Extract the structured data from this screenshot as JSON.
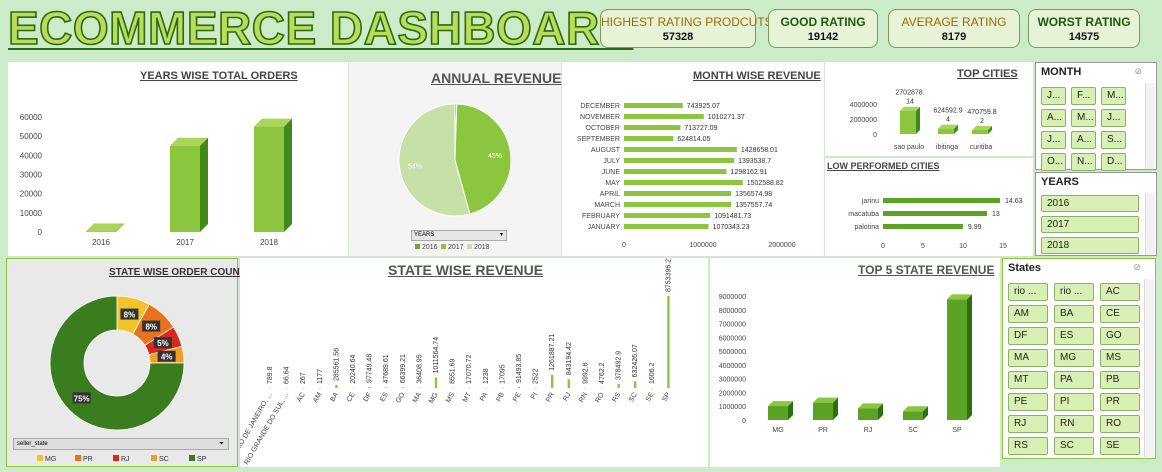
{
  "header": {
    "title": "ECOMMERCE DASHBOARD",
    "kpis": [
      {
        "label": "HIGHEST RATING PRODCUTS",
        "value": "57328"
      },
      {
        "label": "GOOD RATING",
        "value": "19142"
      },
      {
        "label": "AVERAGE RATING",
        "value": "8179"
      },
      {
        "label": "WORST RATING",
        "value": "14575"
      }
    ]
  },
  "colors": {
    "accent": "#8cc63f",
    "dark_green": "#3a7d1e",
    "light_green": "#b9dd5b",
    "pie_light": "#c6e0a8",
    "gold": "#f2c42a",
    "orange": "#e8731c",
    "red": "#d9281e"
  },
  "chart_data": [
    {
      "id": "years_wise_total_orders",
      "type": "bar",
      "title": "YEARS WISE TOTAL ORDERS",
      "categories": [
        "2016",
        "2017",
        "2018"
      ],
      "values": [
        300,
        45000,
        55000
      ],
      "ylim": [
        0,
        60000
      ],
      "yticks": [
        "0",
        "10000",
        "20000",
        "30000",
        "40000",
        "50000",
        "60000"
      ]
    },
    {
      "id": "annual_revenue",
      "type": "pie",
      "title": "ANNUAL REVENUE",
      "labels": [
        "2016",
        "2017",
        "2018"
      ],
      "values": [
        0.5,
        45,
        54
      ],
      "data_labels": [
        "0%",
        "45%",
        "54%"
      ],
      "filter_label": "YEARS",
      "legend_position": "bottom"
    },
    {
      "id": "month_wise_revenue",
      "type": "bar",
      "orientation": "horizontal",
      "title": "MONTH WISE REVENUE",
      "categories": [
        "DECEMBER",
        "NOVEMBER",
        "OCTOBER",
        "SEPTEMBER",
        "AUGUST",
        "JULY",
        "JUNE",
        "MAY",
        "APRIL",
        "MARCH",
        "FEBRUARY",
        "JANUARY"
      ],
      "values": [
        743925.07,
        1010271.37,
        713727.09,
        624814.05,
        1428658.01,
        1393538.7,
        1298162.91,
        1502588.82,
        1356574.98,
        1357557.74,
        1091481.73,
        1070343.23
      ],
      "data_labels": [
        "743925.07",
        "1010271.37",
        "713727.09",
        "624814.05",
        "1428658.01",
        "1393538.7",
        "1298162.91",
        "1502588.82",
        "1356574.98",
        "1357557.74",
        "1091481.73",
        "1070343.23"
      ],
      "xlim": [
        0,
        2000000
      ],
      "xticks": [
        "0",
        "1000000",
        "2000000"
      ]
    },
    {
      "id": "top_cities",
      "type": "bar",
      "title": "TOP CITIES",
      "categories": [
        "sao paulo",
        "ibitinga",
        "curitiba"
      ],
      "values": [
        2702878.14,
        624592.94,
        470759.82
      ],
      "data_labels": [
        "2702878.\n14",
        "624592.9\n4",
        "470759.8\n2"
      ],
      "ylim": [
        0,
        4000000
      ],
      "yticks": [
        "0",
        "2000000",
        "4000000"
      ]
    },
    {
      "id": "low_performed_cities",
      "type": "bar",
      "orientation": "horizontal",
      "title": "LOW PERFORMED  CITIES",
      "categories": [
        "jarinu",
        "macatuba",
        "palotina"
      ],
      "values": [
        14.63,
        13,
        9.99
      ],
      "data_labels": [
        "14.63",
        "13",
        "9.99"
      ],
      "xlim": [
        0,
        15
      ],
      "xticks": [
        "0",
        "5",
        "10",
        "15"
      ]
    },
    {
      "id": "state_wise_order_count",
      "type": "pie",
      "donut": true,
      "title": "STATE WISE ORDER COUNT",
      "labels": [
        "MG",
        "PR",
        "RJ",
        "SC",
        "SP"
      ],
      "values": [
        8,
        8,
        5,
        4,
        75
      ],
      "data_labels": [
        "8%",
        "8%",
        "5%",
        "4%",
        "75%"
      ],
      "filter_label": "seller_state",
      "legend_position": "bottom"
    },
    {
      "id": "state_wise_revenue",
      "type": "bar",
      "title": "STATE WISE REVENUE",
      "categories": [
        "RIO DE JANEIRO, ...",
        "RIO GRANDE DO SUL, ...",
        "AC",
        "AM",
        "BA",
        "CE",
        "DF",
        "ES",
        "GO",
        "MA",
        "MG",
        "MS",
        "MT",
        "PA",
        "PB",
        "PE",
        "PI",
        "PR",
        "RJ",
        "RN",
        "RO",
        "RS",
        "SC",
        "SE",
        "SP"
      ],
      "values": [
        789.8,
        66.64,
        267,
        1177,
        285561.56,
        20240.64,
        97749.48,
        47689.61,
        66399.21,
        36408.95,
        1011564.74,
        8551.69,
        17070.72,
        1238,
        17095,
        91493.85,
        2522,
        1261887.21,
        843194.42,
        9992.6,
        4762.2,
        378492.9,
        632426.07,
        1606.2,
        8753396.21
      ],
      "data_labels": [
        "789.8",
        "66.64",
        "267",
        "1177",
        "285561.56",
        "20240.64",
        "97749.48",
        "47689.61",
        "66399.21",
        "36408.95",
        "1011564.74",
        "8551.69",
        "17070.72",
        "1238",
        "17095",
        "91493.85",
        "2522",
        "1261887.21",
        "843194.42",
        "9992.6",
        "4762.2",
        "378492.9",
        "632426.07",
        "1606.2",
        "8753396.21"
      ]
    },
    {
      "id": "top_5_state_revenue",
      "type": "bar",
      "title": "TOP 5 STATE REVENUE",
      "categories": [
        "MG",
        "PR",
        "RJ",
        "SC",
        "SP"
      ],
      "values": [
        1011564.74,
        1261887.21,
        843194.42,
        632426.07,
        8753396.21
      ],
      "ylim": [
        0,
        9000000
      ],
      "yticks": [
        "0",
        "1000000",
        "2000000",
        "3000000",
        "4000000",
        "5000000",
        "6000000",
        "7000000",
        "8000000",
        "9000000"
      ]
    }
  ],
  "slicers": {
    "month": {
      "title": "MONTH",
      "items": [
        "J...",
        "F...",
        "M...",
        "A...",
        "M...",
        "J...",
        "J...",
        "A...",
        "S...",
        "O...",
        "N...",
        "D..."
      ]
    },
    "years": {
      "title": "YEARS",
      "items": [
        "2016",
        "2017",
        "2018"
      ]
    },
    "states": {
      "title": "States",
      "items": [
        "rio ...",
        "rio ...",
        "AC",
        "AM",
        "BA",
        "CE",
        "DF",
        "ES",
        "GO",
        "MA",
        "MG",
        "MS",
        "MT",
        "PA",
        "PB",
        "PE",
        "PI",
        "PR",
        "RJ",
        "RN",
        "RO",
        "RS",
        "SC",
        "SE"
      ]
    }
  }
}
